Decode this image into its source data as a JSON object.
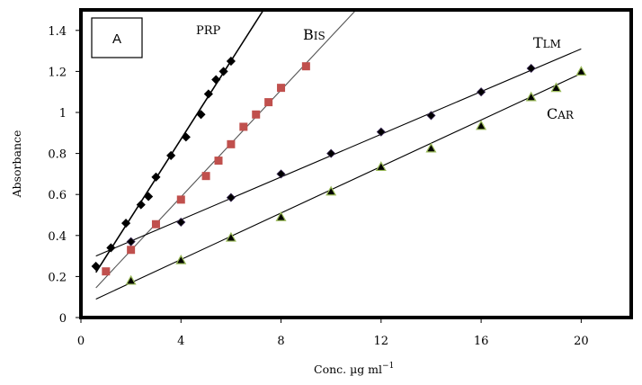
{
  "chart_data": {
    "type": "scatter",
    "title": "",
    "panel_label": "A",
    "xlabel": "Conc. µg ml",
    "xlabel_superscript": "−1",
    "ylabel": "Absorbance",
    "xlim": [
      0,
      22
    ],
    "ylim": [
      0,
      1.5
    ],
    "xticks": [
      0,
      4,
      8,
      12,
      16,
      20
    ],
    "xtick_labels": [
      "0",
      "4",
      "8",
      "12",
      "16",
      "20"
    ],
    "yticks": [
      0,
      0.2,
      0.4,
      0.6,
      0.8,
      1.0,
      1.2,
      1.4
    ],
    "ytick_labels": [
      "0",
      "0.2",
      "0.4",
      "0.6",
      "0.8",
      "1",
      "1.2",
      "1.4"
    ],
    "grid": false,
    "legend": "none (inline series labels)",
    "series": [
      {
        "name": "PRP",
        "label_first": "PRP",
        "label_rest": "",
        "marker": "diamond",
        "color": "#000000",
        "line_color": "#000000",
        "x": [
          0.6,
          1.2,
          1.8,
          2.4,
          2.7,
          3.0,
          3.6,
          4.2,
          4.8,
          5.1,
          5.4,
          5.7,
          6.0
        ],
        "y": [
          0.25,
          0.34,
          0.46,
          0.55,
          0.59,
          0.685,
          0.79,
          0.88,
          0.99,
          1.09,
          1.16,
          1.2,
          1.25
        ],
        "fit": {
          "x": [
            0.6,
            7.3
          ],
          "y": [
            0.22,
            1.5
          ]
        }
      },
      {
        "name": "BIS",
        "label_first": "B",
        "label_rest": "IS",
        "marker": "square",
        "color": "#c0504d",
        "line_color": "#555555",
        "x": [
          1.0,
          2.0,
          3.0,
          4.0,
          5.0,
          5.5,
          6.0,
          6.5,
          7.0,
          7.5,
          8.0,
          9.0
        ],
        "y": [
          0.225,
          0.33,
          0.455,
          0.575,
          0.69,
          0.765,
          0.845,
          0.93,
          0.99,
          1.05,
          1.12,
          1.225
        ],
        "fit": {
          "x": [
            0.6,
            11.0
          ],
          "y": [
            0.145,
            1.5
          ]
        }
      },
      {
        "name": "TLM",
        "label_first": "T",
        "label_rest": "LM",
        "marker": "diamond",
        "color": "#000000",
        "line_color": "#000000",
        "x": [
          2,
          4,
          6,
          8,
          10,
          12,
          14,
          16,
          18
        ],
        "y": [
          0.37,
          0.465,
          0.585,
          0.7,
          0.8,
          0.905,
          0.985,
          1.1,
          1.215
        ],
        "fit": {
          "x": [
            0.6,
            20.0
          ],
          "y": [
            0.3,
            1.31
          ]
        }
      },
      {
        "name": "CAR",
        "label_first": "C",
        "label_rest": "AR",
        "marker": "triangle",
        "color": "#000000",
        "line_color": "#000000",
        "x": [
          2,
          4,
          6,
          8,
          10,
          12,
          14,
          16,
          18,
          19,
          20
        ],
        "y": [
          0.18,
          0.28,
          0.39,
          0.49,
          0.615,
          0.735,
          0.825,
          0.935,
          1.075,
          1.12,
          1.2
        ],
        "fit": {
          "x": [
            0.6,
            20.0
          ],
          "y": [
            0.09,
            1.19
          ]
        }
      }
    ]
  }
}
